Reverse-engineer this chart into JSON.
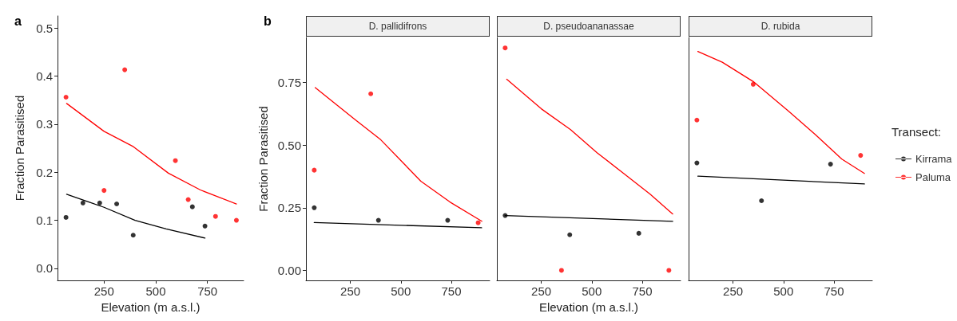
{
  "chart_data": [
    {
      "type": "scatter",
      "annotations": [
        "a"
      ],
      "xlabel": "Elevation (m a.s.l.)",
      "ylabel": "Fraction Parasitised",
      "xlim": [
        25,
        925
      ],
      "xticks": [
        250,
        500,
        750
      ],
      "ylim": [
        -0.025,
        0.525
      ],
      "yticks": [
        {
          "value": 0,
          "label": "0.0"
        },
        {
          "value": 0.1,
          "label": "0.1"
        },
        {
          "value": 0.2,
          "label": "0.2"
        },
        {
          "value": 0.3,
          "label": "0.3"
        },
        {
          "value": 0.4,
          "label": "0.4"
        },
        {
          "value": 0.5,
          "label": "0.5"
        }
      ],
      "grid": false,
      "legend": false,
      "marker": "circle",
      "series": [
        {
          "color": "#000000",
          "x": [
            66,
            148,
            229,
            311,
            391,
            677,
            738
          ],
          "values": [
            0.106,
            0.136,
            0.136,
            0.134,
            0.069,
            0.128,
            0.088
          ]
        },
        {
          "color": "#ff0000",
          "x": [
            66,
            250,
            350,
            595,
            657,
            789,
            890
          ],
          "values": [
            0.356,
            0.162,
            0.413,
            0.224,
            0.143,
            0.108,
            0.1
          ]
        },
        {
          "type": "line",
          "marker": "none",
          "color": "#000000",
          "x": [
            69,
            250,
            400,
            550,
            738
          ],
          "values": [
            0.154,
            0.127,
            0.1,
            0.082,
            0.063
          ]
        },
        {
          "type": "line",
          "marker": "none",
          "color": "#ff0000",
          "x": [
            69,
            250,
            392,
            561,
            716,
            890
          ],
          "values": [
            0.343,
            0.285,
            0.253,
            0.198,
            0.163,
            0.134
          ]
        }
      ]
    },
    {
      "type": "scatter",
      "title": "D. pallidifrons",
      "annotations": [
        "b"
      ],
      "ylabel": "Fraction Parasitised",
      "xlim": [
        30,
        940
      ],
      "xticks": [
        250,
        500,
        750
      ],
      "ylim": [
        -0.04,
        0.93
      ],
      "yticks": [
        {
          "value": 0,
          "label": "0.00"
        },
        {
          "value": 0.25,
          "label": "0.25"
        },
        {
          "value": 0.5,
          "label": "0.50"
        },
        {
          "value": 0.75,
          "label": "0.75"
        }
      ],
      "grid": false,
      "legend": false,
      "marker": "circle",
      "series": [
        {
          "color": "#000000",
          "x": [
            71,
            389,
            732
          ],
          "values": [
            0.25,
            0.2,
            0.2
          ]
        },
        {
          "color": "#ff0000",
          "x": [
            71,
            351,
            883
          ],
          "values": [
            0.4,
            0.705,
            0.19
          ]
        },
        {
          "type": "line",
          "marker": "none",
          "color": "#000000",
          "x": [
            71,
            900
          ],
          "values": [
            0.191,
            0.17
          ]
        },
        {
          "type": "line",
          "marker": "none",
          "color": "#ff0000",
          "x": [
            76,
            270,
            401,
            599,
            743,
            901
          ],
          "values": [
            0.73,
            0.604,
            0.521,
            0.356,
            0.273,
            0.196
          ]
        }
      ]
    },
    {
      "type": "scatter",
      "title": "D. pseudoananassae",
      "xlabel": "Elevation (m a.s.l.)",
      "xlim": [
        30,
        940
      ],
      "xticks": [
        250,
        500,
        750
      ],
      "ylim": [
        -0.04,
        0.93
      ],
      "tick_labels": "x",
      "grid": false,
      "legend": false,
      "marker": "circle",
      "series": [
        {
          "color": "#000000",
          "x": [
            71,
            391,
            733
          ],
          "values": [
            0.219,
            0.142,
            0.148
          ]
        },
        {
          "color": "#ff0000",
          "x": [
            71,
            350,
            882
          ],
          "values": [
            0.888,
            0.0,
            0.0
          ]
        },
        {
          "type": "line",
          "marker": "none",
          "color": "#000000",
          "x": [
            71,
            901
          ],
          "values": [
            0.219,
            0.196
          ]
        },
        {
          "type": "line",
          "marker": "none",
          "color": "#ff0000",
          "x": [
            79,
            250,
            395,
            526,
            658,
            789,
            901
          ],
          "values": [
            0.763,
            0.645,
            0.562,
            0.47,
            0.387,
            0.304,
            0.225
          ]
        }
      ]
    },
    {
      "type": "scatter",
      "title": "D. rubida",
      "legend_title": "Transect:",
      "xlim": [
        30,
        940
      ],
      "xticks": [
        250,
        500,
        750
      ],
      "ylim": [
        -0.04,
        0.93
      ],
      "tick_labels": "x",
      "grid": false,
      "legend": "right",
      "marker": "circle",
      "series": [
        {
          "name": "Kirrama",
          "color": "#000000",
          "x": [
            71,
            391,
            733
          ],
          "values": [
            0.429,
            0.278,
            0.424
          ]
        },
        {
          "name": "Paluma",
          "color": "#ff0000",
          "x": [
            71,
            350,
            882
          ],
          "values": [
            0.6,
            0.743,
            0.459
          ]
        },
        {
          "type": "line",
          "marker": "none",
          "color": "#000000",
          "x": [
            76,
            901
          ],
          "values": [
            0.376,
            0.345
          ]
        },
        {
          "type": "line",
          "marker": "none",
          "color": "#ff0000",
          "x": [
            76,
            197,
            350,
            526,
            658,
            789,
            901
          ],
          "values": [
            0.874,
            0.831,
            0.754,
            0.635,
            0.542,
            0.444,
            0.387
          ]
        }
      ]
    }
  ]
}
